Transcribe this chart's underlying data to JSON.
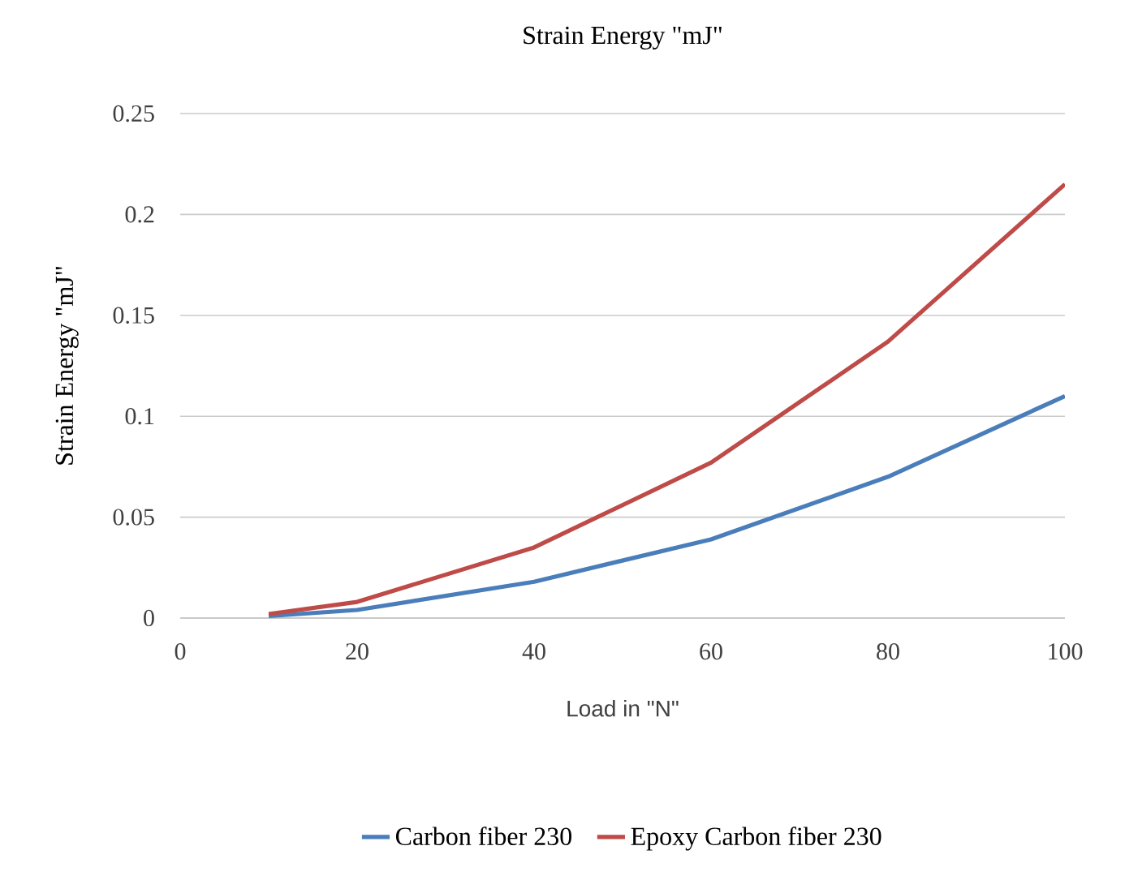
{
  "chart_data": {
    "type": "line",
    "title": "Strain Energy \"mJ\"",
    "xlabel": "Load in \"N\"",
    "ylabel": "Strain Energy \"mJ\"",
    "x": [
      10,
      20,
      40,
      60,
      80,
      100
    ],
    "series": [
      {
        "name": "Carbon fiber 230",
        "color": "#4a7ebb",
        "values": [
          0.001,
          0.004,
          0.018,
          0.039,
          0.07,
          0.11
        ]
      },
      {
        "name": "Epoxy Carbon fiber 230",
        "color": "#be4b48",
        "values": [
          0.002,
          0.008,
          0.035,
          0.077,
          0.137,
          0.215
        ]
      }
    ],
    "xlim": [
      0,
      100
    ],
    "xticks": [
      0,
      20,
      40,
      60,
      80,
      100
    ],
    "ylim": [
      0,
      0.25
    ],
    "yticks": [
      0,
      0.05,
      0.1,
      0.15,
      0.2,
      0.25
    ],
    "grid": "y",
    "legend": "bottom",
    "marker": "none",
    "line_style": "solid"
  }
}
